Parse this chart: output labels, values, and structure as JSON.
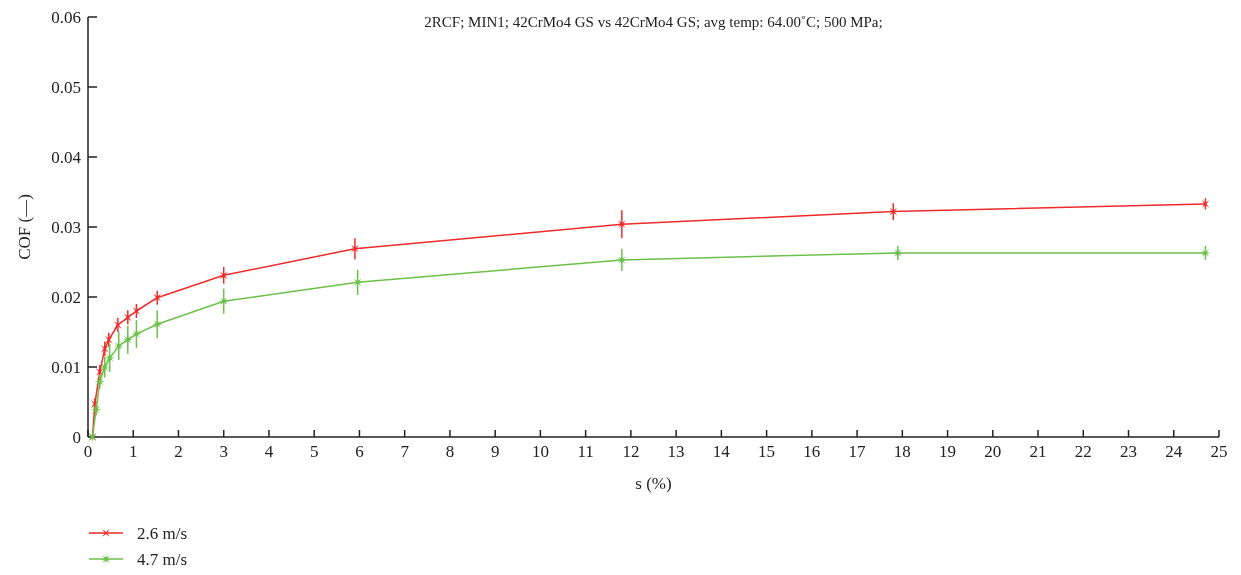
{
  "chart_data": {
    "type": "line",
    "title": "2RCF; MIN1; 42CrMo4 GS vs 42CrMo4 GS; avg temp: 64.00˚C; 500 MPa;",
    "xlabel": "s (%)",
    "ylabel": "COF (—)",
    "xlim": [
      0,
      25
    ],
    "xticks": [
      0,
      1,
      2,
      3,
      4,
      5,
      6,
      7,
      8,
      9,
      10,
      11,
      12,
      13,
      14,
      15,
      16,
      17,
      18,
      19,
      20,
      21,
      22,
      23,
      24,
      25
    ],
    "ylim": [
      0,
      0.06
    ],
    "yticks": [
      0,
      0.01,
      0.02,
      0.03,
      0.04,
      0.05,
      0.06
    ],
    "legend": "bottom",
    "grid": false,
    "line_style": "solid",
    "series": [
      {
        "name": "2.6 m/s",
        "color": "#ee2a2a",
        "marker": "cross",
        "x": [
          0.1,
          0.15,
          0.26,
          0.37,
          0.46,
          0.66,
          0.88,
          1.07,
          1.53,
          3.0,
          5.9,
          11.8,
          17.8,
          24.7
        ],
        "values": [
          0,
          0.0047,
          0.0093,
          0.0126,
          0.0139,
          0.016,
          0.0171,
          0.018,
          0.0199,
          0.0231,
          0.0269,
          0.0304,
          0.0322,
          0.0333
        ],
        "errors": [
          null,
          0.0008,
          0.001,
          0.001,
          0.001,
          0.001,
          0.001,
          0.001,
          0.001,
          0.0012,
          0.0015,
          0.002,
          0.0012,
          0.0008
        ]
      },
      {
        "name": "4.7 m/s",
        "color": "#6cc04a",
        "marker": "star",
        "x": [
          0.1,
          0.18,
          0.26,
          0.37,
          0.48,
          0.68,
          0.88,
          1.07,
          1.53,
          3.0,
          5.96,
          11.8,
          17.9,
          24.7
        ],
        "values": [
          0,
          0.0039,
          0.0079,
          0.01,
          0.0113,
          0.013,
          0.0139,
          0.0147,
          0.0161,
          0.0194,
          0.0221,
          0.0253,
          0.0263,
          0.0263
        ],
        "errors": [
          null,
          0.0008,
          0.001,
          0.0015,
          0.002,
          0.002,
          0.002,
          0.002,
          0.002,
          0.0018,
          0.0018,
          0.0016,
          0.001,
          0.001
        ]
      }
    ]
  }
}
